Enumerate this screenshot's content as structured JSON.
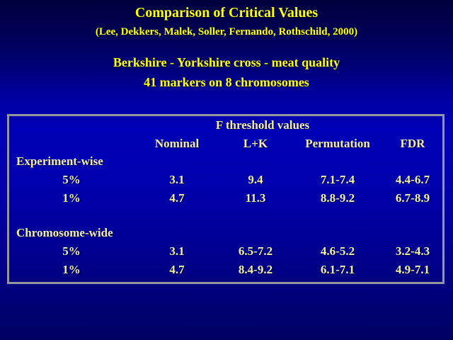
{
  "slide": {
    "title": "Comparison of Critical Values",
    "citation": "(Lee, Dekkers, Malek, Soller, Fernando, Rothschild, 2000)",
    "subtitle_line1": "Berkshire - Yorkshire cross - meat quality",
    "subtitle_line2": "41 markers on 8 chromosomes"
  },
  "table": {
    "title": "F threshold values",
    "columns": [
      "Nominal",
      "L+K",
      "Permutation",
      "FDR"
    ],
    "sections": [
      {
        "label": "Experiment-wise",
        "rows": [
          {
            "level": "5%",
            "values": [
              "3.1",
              "9.4",
              "7.1-7.4",
              "4.4-6.7"
            ]
          },
          {
            "level": "1%",
            "values": [
              "4.7",
              "11.3",
              "8.8-9.2",
              "6.7-8.9"
            ]
          }
        ]
      },
      {
        "label": "Chromosome-wide",
        "rows": [
          {
            "level": "5%",
            "values": [
              "3.1",
              "6.5-7.2",
              "4.6-5.2",
              "3.2-4.3"
            ]
          },
          {
            "level": "1%",
            "values": [
              "4.7",
              "8.4-9.2",
              "6.1-7.1",
              "4.9-7.1"
            ]
          }
        ]
      }
    ]
  },
  "colors": {
    "background_top": "#000040",
    "background_middle": "#0000B6",
    "background_bottom": "#000062",
    "title_text": "#FFFF00",
    "table_text": "#F2EDA4",
    "table_border": "#95959D"
  }
}
